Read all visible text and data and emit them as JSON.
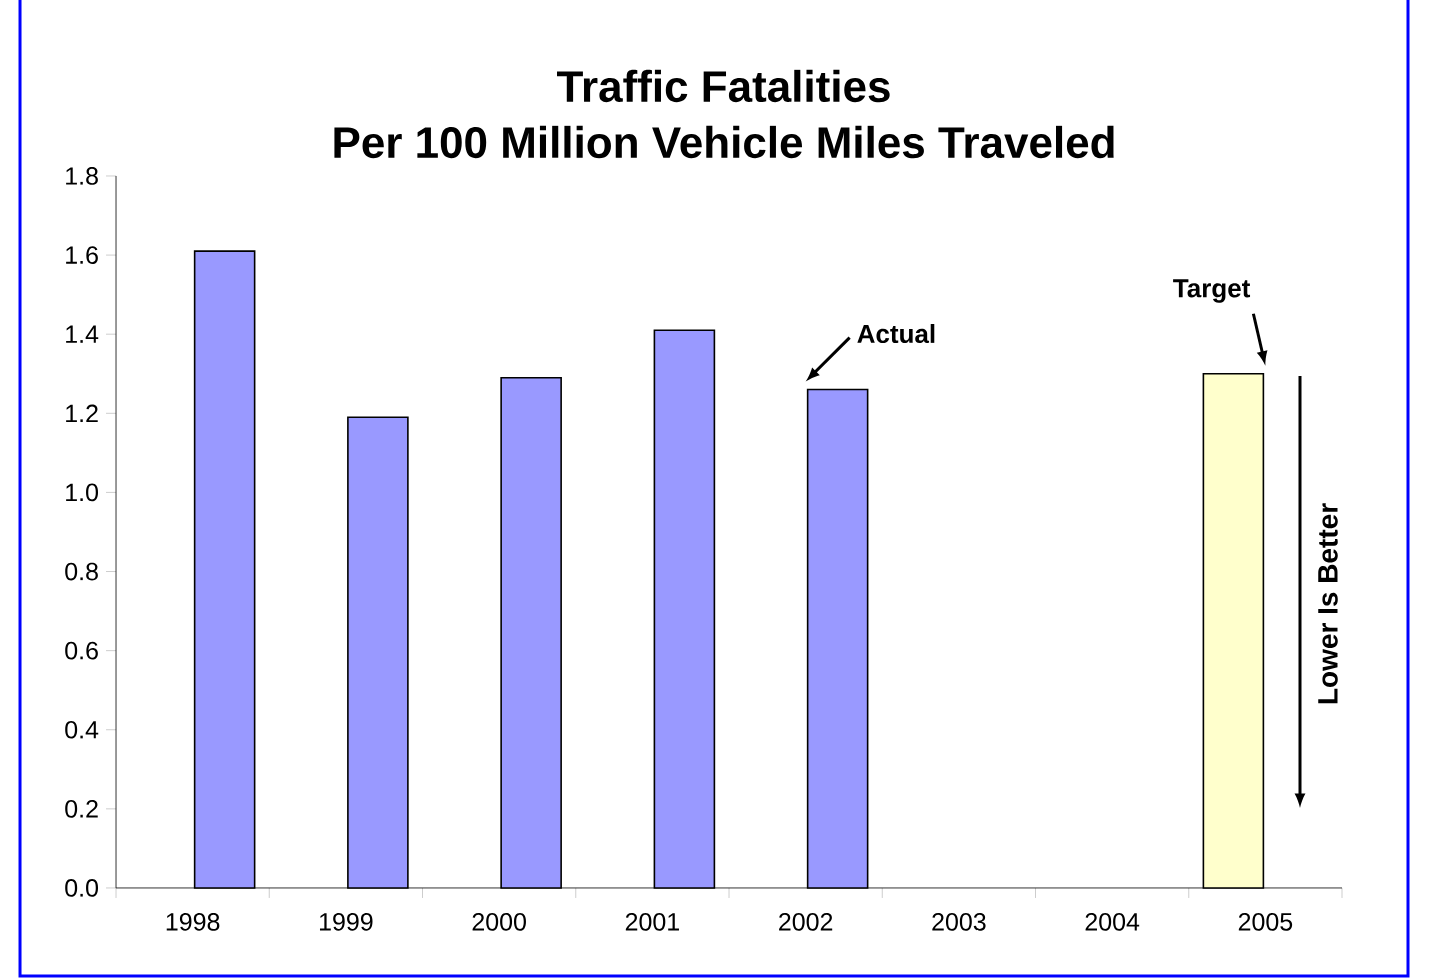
{
  "chart_data": {
    "type": "bar",
    "title": "Traffic Fatalities",
    "subtitle": "Per 100 Million Vehicle Miles Traveled",
    "categories": [
      "1998",
      "1999",
      "2000",
      "2001",
      "2002",
      "2003",
      "2004",
      "2005"
    ],
    "series": [
      {
        "color": "#ffffcc",
        "values": [
          null,
          null,
          null,
          null,
          null,
          null,
          null,
          1.3
        ]
      },
      {
        "color": "#9999ff",
        "values": [
          1.61,
          1.19,
          1.29,
          1.41,
          1.26,
          null,
          null,
          null
        ]
      }
    ],
    "ylim": [
      0,
      1.8
    ],
    "yticks": [
      {
        "value": 0,
        "label": "0.0"
      },
      {
        "value": 0.2,
        "label": "0.2"
      },
      {
        "value": 0.4,
        "label": "0.4"
      },
      {
        "value": 0.6,
        "label": "0.6"
      },
      {
        "value": 0.8,
        "label": "0.8"
      },
      {
        "value": 1.0,
        "label": "1.0"
      },
      {
        "value": 1.2,
        "label": "1.2"
      },
      {
        "value": 1.4,
        "label": "1.4"
      },
      {
        "value": 1.6,
        "label": "1.6"
      },
      {
        "value": 1.8,
        "label": "1.8"
      }
    ],
    "annotations": [
      {
        "text": "Actual",
        "x": "2002",
        "y": 1.26
      },
      {
        "text": "Target",
        "x": "2005",
        "y": 1.3
      },
      "Lower Is Better"
    ],
    "grid": false
  }
}
